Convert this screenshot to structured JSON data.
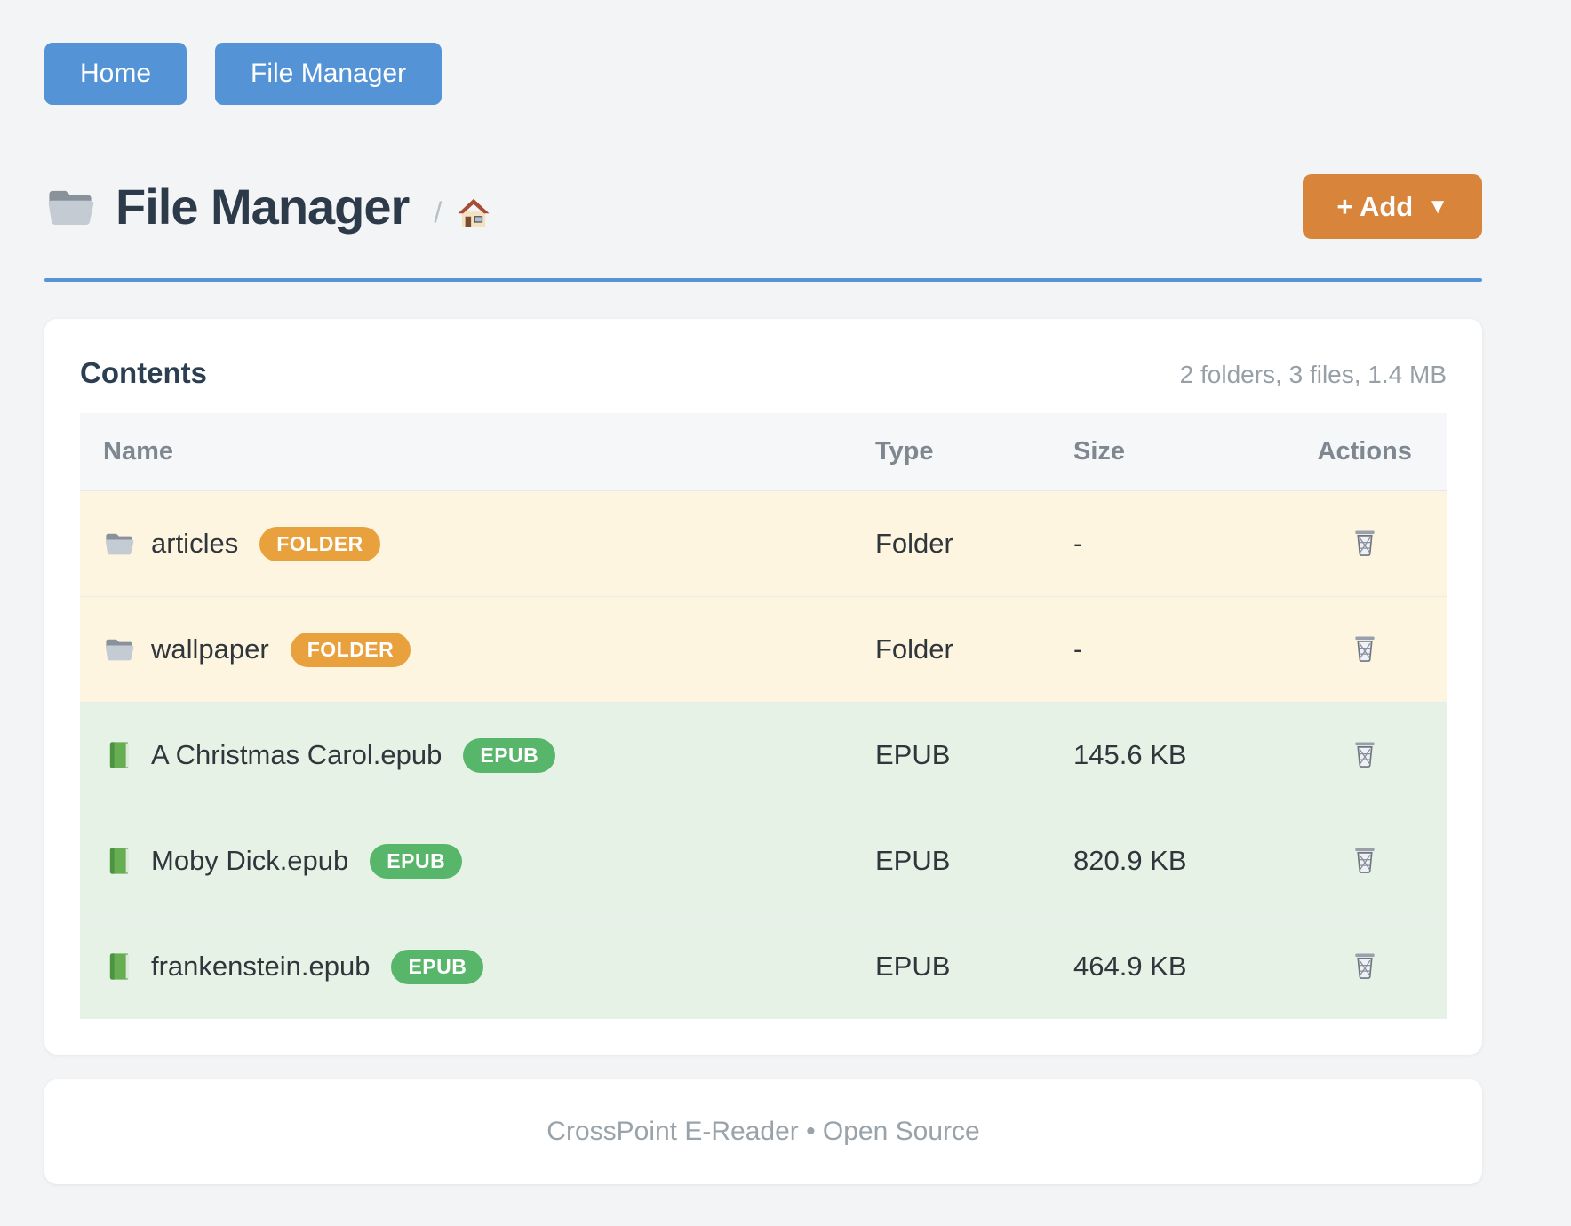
{
  "colors": {
    "accent-blue": "#5494d6",
    "accent-orange": "#d8843a",
    "badge-folder": "#e8a13d",
    "badge-epub": "#57b66a",
    "row-folder-bg": "#fdf5e0",
    "row-epub-bg": "#e6f2e6"
  },
  "nav": {
    "home_label": "Home",
    "file_manager_label": "File Manager"
  },
  "header": {
    "title": "File Manager",
    "title_icon": "folder-icon",
    "breadcrumb_separator": "/",
    "breadcrumb_home_icon": "house-icon",
    "add_button_label": "+ Add",
    "add_button_caret": "▼"
  },
  "card": {
    "title": "Contents",
    "summary": "2 folders, 3 files, 1.4 MB",
    "table": {
      "columns": [
        "Name",
        "Type",
        "Size",
        "Actions"
      ],
      "rows": [
        {
          "kind": "folder",
          "icon": "folder-icon",
          "name": "articles",
          "badge": "FOLDER",
          "type": "Folder",
          "size": "-",
          "action_icon": "trash-icon"
        },
        {
          "kind": "folder",
          "icon": "folder-icon",
          "name": "wallpaper",
          "badge": "FOLDER",
          "type": "Folder",
          "size": "-",
          "action_icon": "trash-icon"
        },
        {
          "kind": "epub",
          "icon": "book-icon",
          "name": "A Christmas Carol.epub",
          "badge": "EPUB",
          "type": "EPUB",
          "size": "145.6 KB",
          "action_icon": "trash-icon"
        },
        {
          "kind": "epub",
          "icon": "book-icon",
          "name": "Moby Dick.epub",
          "badge": "EPUB",
          "type": "EPUB",
          "size": "820.9 KB",
          "action_icon": "trash-icon"
        },
        {
          "kind": "epub",
          "icon": "book-icon",
          "name": "frankenstein.epub",
          "badge": "EPUB",
          "type": "EPUB",
          "size": "464.9 KB",
          "action_icon": "trash-icon"
        }
      ]
    }
  },
  "footer": {
    "text": "CrossPoint E-Reader • Open Source"
  }
}
